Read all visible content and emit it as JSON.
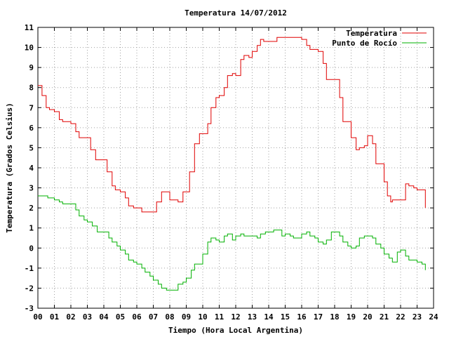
{
  "chart_data": {
    "type": "line",
    "title": "Temperatura 14/07/2012",
    "xlabel": "Tiempo (Hora Local Argentina)",
    "ylabel": "Temperatura (Grados Celsius)",
    "xlim": [
      0,
      24
    ],
    "ylim": [
      -3,
      11
    ],
    "x_ticks": [
      "00",
      "01",
      "02",
      "03",
      "04",
      "05",
      "06",
      "07",
      "08",
      "09",
      "10",
      "11",
      "12",
      "13",
      "14",
      "15",
      "16",
      "17",
      "18",
      "19",
      "20",
      "21",
      "22",
      "23",
      "24"
    ],
    "y_ticks": [
      "-3",
      "-2",
      "-1",
      "0",
      "1",
      "2",
      "3",
      "4",
      "5",
      "6",
      "7",
      "8",
      "9",
      "10",
      "11"
    ],
    "grid": true,
    "legend_position": "top-right",
    "series": [
      {
        "name": "Temperatura",
        "color": "#e00000",
        "x": [
          0,
          0.25,
          0.5,
          0.7,
          1.0,
          1.3,
          1.5,
          2.0,
          2.3,
          2.5,
          3.0,
          3.2,
          3.5,
          4.0,
          4.2,
          4.5,
          4.7,
          5.0,
          5.3,
          5.5,
          5.8,
          6.0,
          6.3,
          6.6,
          6.8,
          7.0,
          7.2,
          7.5,
          8.0,
          8.3,
          8.5,
          8.8,
          9.0,
          9.2,
          9.5,
          9.8,
          10.0,
          10.3,
          10.5,
          10.8,
          11.0,
          11.3,
          11.5,
          11.8,
          12.0,
          12.3,
          12.5,
          12.8,
          13.0,
          13.3,
          13.5,
          13.7,
          14.0,
          14.3,
          14.5,
          15.0,
          15.5,
          16.0,
          16.3,
          16.5,
          17.0,
          17.3,
          17.5,
          17.8,
          18.0,
          18.3,
          18.5,
          18.8,
          19.0,
          19.3,
          19.5,
          19.8,
          20.0,
          20.3,
          20.5,
          20.8,
          21.0,
          21.2,
          21.4,
          21.5,
          21.8,
          22.0,
          22.3,
          22.5,
          22.8,
          23.0,
          23.3,
          23.5
        ],
        "values": [
          8.1,
          7.6,
          7.0,
          6.9,
          6.8,
          6.4,
          6.3,
          6.2,
          5.8,
          5.5,
          5.5,
          4.9,
          4.4,
          4.4,
          3.8,
          3.1,
          2.9,
          2.8,
          2.5,
          2.1,
          2.0,
          2.0,
          1.8,
          1.8,
          1.8,
          1.8,
          2.3,
          2.8,
          2.4,
          2.4,
          2.3,
          2.8,
          2.8,
          3.8,
          5.2,
          5.7,
          5.7,
          6.2,
          7.0,
          7.5,
          7.6,
          8.0,
          8.6,
          8.7,
          8.6,
          9.4,
          9.6,
          9.5,
          9.8,
          10.1,
          10.4,
          10.3,
          10.3,
          10.3,
          10.5,
          10.5,
          10.5,
          10.4,
          10.1,
          9.9,
          9.8,
          9.2,
          8.4,
          8.4,
          8.4,
          7.5,
          6.3,
          6.3,
          5.5,
          4.9,
          5.0,
          5.1,
          5.6,
          5.2,
          4.2,
          4.2,
          3.3,
          2.6,
          2.3,
          2.4,
          2.4,
          2.4,
          3.2,
          3.1,
          3.0,
          2.9,
          2.9,
          2.0
        ]
      },
      {
        "name": "Punto de Rocío",
        "color": "#00b000",
        "x": [
          0,
          0.3,
          0.6,
          1.0,
          1.3,
          1.5,
          2.0,
          2.3,
          2.5,
          2.8,
          3.0,
          3.3,
          3.6,
          4.0,
          4.3,
          4.5,
          4.8,
          5.0,
          5.3,
          5.5,
          5.8,
          6.0,
          6.3,
          6.5,
          6.8,
          7.0,
          7.3,
          7.5,
          7.8,
          8.0,
          8.3,
          8.5,
          8.8,
          9.0,
          9.3,
          9.5,
          9.8,
          10.0,
          10.3,
          10.5,
          10.8,
          11.0,
          11.3,
          11.5,
          11.8,
          12.0,
          12.3,
          12.5,
          12.8,
          13.0,
          13.3,
          13.5,
          13.8,
          14.0,
          14.3,
          14.5,
          14.8,
          15.0,
          15.3,
          15.5,
          15.8,
          16.0,
          16.3,
          16.5,
          16.8,
          17.0,
          17.3,
          17.5,
          17.8,
          18.0,
          18.3,
          18.5,
          18.8,
          19.0,
          19.3,
          19.5,
          19.8,
          20.0,
          20.3,
          20.5,
          20.8,
          21.0,
          21.3,
          21.5,
          21.8,
          22.0,
          22.3,
          22.5,
          22.8,
          23.0,
          23.3,
          23.5
        ],
        "values": [
          2.6,
          2.6,
          2.5,
          2.4,
          2.3,
          2.2,
          2.2,
          1.9,
          1.6,
          1.4,
          1.3,
          1.1,
          0.8,
          0.8,
          0.5,
          0.3,
          0.1,
          -0.1,
          -0.3,
          -0.6,
          -0.7,
          -0.8,
          -1.0,
          -1.2,
          -1.4,
          -1.6,
          -1.8,
          -2.0,
          -2.1,
          -2.1,
          -2.1,
          -1.8,
          -1.7,
          -1.5,
          -1.1,
          -0.8,
          -0.8,
          -0.3,
          0.3,
          0.5,
          0.4,
          0.3,
          0.6,
          0.7,
          0.4,
          0.6,
          0.7,
          0.6,
          0.6,
          0.6,
          0.5,
          0.7,
          0.8,
          0.8,
          0.9,
          0.9,
          0.6,
          0.7,
          0.6,
          0.5,
          0.5,
          0.7,
          0.8,
          0.6,
          0.5,
          0.3,
          0.2,
          0.4,
          0.8,
          0.8,
          0.6,
          0.3,
          0.1,
          0.0,
          0.1,
          0.5,
          0.6,
          0.6,
          0.5,
          0.2,
          0.0,
          -0.3,
          -0.5,
          -0.7,
          -0.2,
          -0.1,
          -0.4,
          -0.6,
          -0.6,
          -0.7,
          -0.8,
          -1.1
        ]
      }
    ]
  }
}
